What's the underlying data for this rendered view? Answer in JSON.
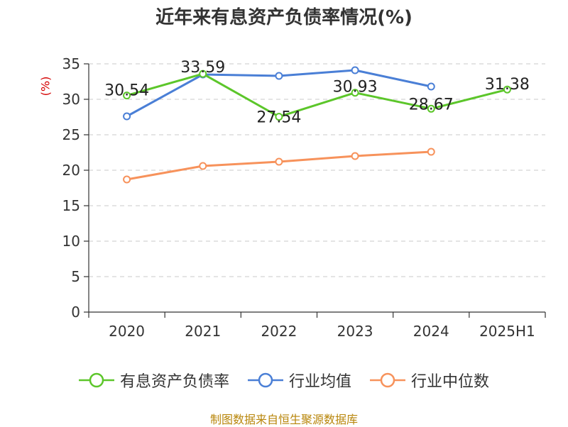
{
  "chart_data": {
    "type": "line",
    "title": "近年来有息资产负债率情况(%)",
    "ylabel": "(%)",
    "xlabel": "",
    "categories": [
      "2020",
      "2021",
      "2022",
      "2023",
      "2024",
      "2025H1"
    ],
    "ylim": [
      0,
      35
    ],
    "yticks": [
      0,
      5,
      10,
      15,
      20,
      25,
      30,
      35
    ],
    "grid": true,
    "legend_position": "bottom",
    "series": [
      {
        "name": "有息资产负债率",
        "color": "#5cc62a",
        "values": [
          30.54,
          33.59,
          27.54,
          30.93,
          28.67,
          31.38
        ],
        "labels": [
          "30.54",
          "33.59",
          "27.54",
          "30.93",
          "28.67",
          "31.38"
        ]
      },
      {
        "name": "行业均值",
        "color": "#4a7fd6",
        "values": [
          27.6,
          33.5,
          33.3,
          34.1,
          31.8,
          null
        ]
      },
      {
        "name": "行业中位数",
        "color": "#f7925b",
        "values": [
          18.7,
          20.6,
          21.2,
          22.0,
          22.6,
          null
        ]
      }
    ]
  },
  "source_text": "制图数据来自恒生聚源数据库"
}
